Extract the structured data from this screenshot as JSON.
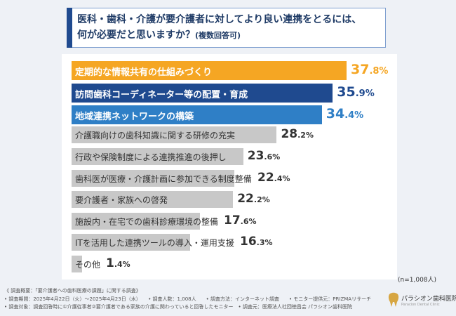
{
  "title": {
    "line1": "医科・歯科・介護が要介護者に対してより良い連携をとるには、",
    "line2": "何が必要だと思いますか？",
    "suffix": "(複数回答可)"
  },
  "chart_data": {
    "type": "bar",
    "orientation": "horizontal",
    "categories": [
      "定期的な情報共有の仕組みづくり",
      "訪問歯科コーディネーター等の配置・育成",
      "地域連携ネットワークの構築",
      "介護職向けの歯科知識に関する研修の充実",
      "行政や保険制度による連携推進の後押し",
      "歯科医が医療・介護計画に参加できる制度整備",
      "要介護者・家族への啓発",
      "施設内・在宅での歯科診療環境の整備",
      "ITを活用した連携ツールの導入・運用支援",
      "その他"
    ],
    "values": [
      37.8,
      35.9,
      34.4,
      28.2,
      23.6,
      22.4,
      22.2,
      17.6,
      16.3,
      1.4
    ],
    "value_labels": [
      {
        "int": "37",
        "dec": ".8%"
      },
      {
        "int": "35",
        "dec": ".9%"
      },
      {
        "int": "34",
        "dec": ".4%"
      },
      {
        "int": "28",
        "dec": ".2%"
      },
      {
        "int": "23",
        "dec": ".6%"
      },
      {
        "int": "22",
        "dec": ".4%"
      },
      {
        "int": "22",
        "dec": ".2%"
      },
      {
        "int": "17",
        "dec": ".6%"
      },
      {
        "int": "16",
        "dec": ".3%"
      },
      {
        "int": "1",
        "dec": ".4%"
      }
    ],
    "bar_colors": [
      "#f5a623",
      "#1f4a8f",
      "#2f7fc6",
      "#c8c8c8",
      "#c8c8c8",
      "#c8c8c8",
      "#c8c8c8",
      "#c8c8c8",
      "#c8c8c8",
      "#c8c8c8"
    ],
    "value_colors": [
      "#f5a623",
      "#1f4a8f",
      "#2f7fc6",
      "#333333",
      "#333333",
      "#333333",
      "#333333",
      "#333333",
      "#333333",
      "#333333"
    ],
    "xlim": [
      0,
      40
    ]
  },
  "sample_n": "(n=1,008人)",
  "footer": {
    "line1": "《 調査概要：「要介護者への歯科医療の課題」に関する調査》",
    "line2": "• 調査期間：2025年4月22日（火）〜2025年4月23日（水）　　• 調査人数：1,008人　　• 調査方法：インターネット調査　　• モニター提供元：PRIZMAリサーチ",
    "line3": "• 調査対象：調査回答時に①介護従事者②要介護者である家族の介護に関わっていると回答したモニター　• 調査元：医療法人社団徳昌会 パラシオン歯科医院"
  },
  "logo": {
    "name": "パラシオン歯科医院",
    "sub": "Paracion Dental Clinic"
  },
  "colors": {
    "background": "#eef1f6",
    "title_accent": "#1f4a8f",
    "title_border": "#7f9fd0"
  }
}
